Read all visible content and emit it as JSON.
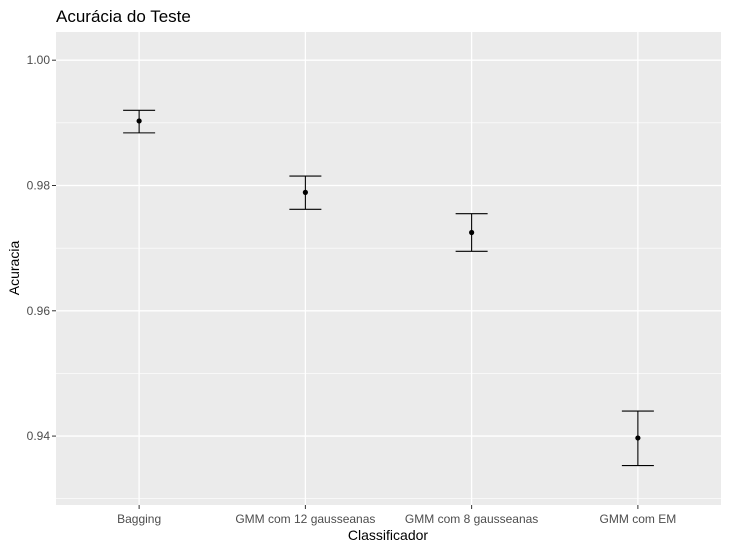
{
  "chart_data": {
    "type": "scatter",
    "title": "Acurácia do Teste",
    "xlabel": "Classificador",
    "ylabel": "Acuracia",
    "categories": [
      "Bagging",
      "GMM com 12 gausseanas",
      "GMM com 8 gausseanas",
      "GMM com EM"
    ],
    "series": [
      {
        "values": [
          0.9903,
          0.9789,
          0.9725,
          0.9397
        ],
        "error_low": [
          0.9884,
          0.9762,
          0.9695,
          0.9353
        ],
        "error_high": [
          0.992,
          0.9815,
          0.9755,
          0.944
        ]
      }
    ],
    "ylim": [
      0.929,
      1.0045
    ],
    "yticks": [
      0.94,
      0.96,
      0.98,
      1.0
    ],
    "ytick_labels": [
      "0.94",
      "0.96",
      "0.98",
      "1.00"
    ],
    "grid": true,
    "panel_color": "#ebebeb",
    "grid_color": "#ffffff",
    "mark_color": "#000000"
  }
}
